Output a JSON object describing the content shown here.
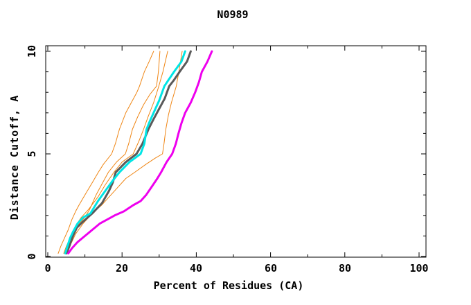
{
  "window": {
    "background": "#ffffff",
    "foreground": "#000000"
  },
  "chart_data": {
    "type": "line",
    "title": "N0989",
    "xlabel": "Percent of Residues (CA)",
    "ylabel": "Distance Cutoff, A",
    "xlim": [
      0,
      100
    ],
    "ylim": [
      0,
      10
    ],
    "grid": "off",
    "legend": "none",
    "x_major_ticks": [
      0,
      20,
      40,
      60,
      80,
      100
    ],
    "x_minor_step": 10,
    "y_major_ticks": [
      0,
      5,
      10
    ],
    "y_minor_step": 1,
    "x_tick_labels": [
      "0",
      "20",
      "40",
      "60",
      "80",
      "100"
    ],
    "y_tick_labels": [
      "0",
      "5",
      "10"
    ],
    "axis_color": "#000000",
    "series": [
      {
        "name": "orange-thin-1",
        "color": "#ef8513",
        "width": 1,
        "points": [
          [
            2.8,
            0.15
          ],
          [
            3.5,
            0.5
          ],
          [
            4.5,
            0.9
          ],
          [
            5.5,
            1.3
          ],
          [
            6.5,
            1.8
          ],
          [
            7.5,
            2.2
          ],
          [
            8.4,
            2.5
          ],
          [
            10,
            3
          ],
          [
            12,
            3.6
          ],
          [
            13.6,
            4.1
          ],
          [
            15,
            4.5
          ],
          [
            17.2,
            5
          ],
          [
            18.2,
            5.5
          ],
          [
            19.3,
            6.2
          ],
          [
            21,
            7
          ],
          [
            22.5,
            7.5
          ],
          [
            24,
            8
          ],
          [
            24.7,
            8.3
          ],
          [
            26,
            9
          ],
          [
            27.3,
            9.5
          ],
          [
            28.5,
            10
          ]
        ]
      },
      {
        "name": "orange-thin-2",
        "color": "#ef8513",
        "width": 1,
        "points": [
          [
            4.3,
            0.15
          ],
          [
            5,
            0.5
          ],
          [
            6,
            0.9
          ],
          [
            7,
            1.2
          ],
          [
            8,
            1.5
          ],
          [
            9.5,
            1.8
          ],
          [
            11,
            2.2
          ],
          [
            11.8,
            2.5
          ],
          [
            13,
            3
          ],
          [
            14.5,
            3.5
          ],
          [
            16.3,
            4.1
          ],
          [
            18.5,
            4.6
          ],
          [
            20.9,
            5
          ],
          [
            21.8,
            5.5
          ],
          [
            22.8,
            6.2
          ],
          [
            24.2,
            6.8
          ],
          [
            25.8,
            7.4
          ],
          [
            27.5,
            7.9
          ],
          [
            29.3,
            8.3
          ],
          [
            29.8,
            9
          ],
          [
            30.2,
            10
          ]
        ]
      },
      {
        "name": "orange-thin-3",
        "color": "#ef8513",
        "width": 1,
        "points": [
          [
            4.8,
            0.15
          ],
          [
            5.5,
            0.6
          ],
          [
            6.5,
            1.1
          ],
          [
            7.5,
            1.5
          ],
          [
            9,
            1.9
          ],
          [
            11,
            2.3
          ],
          [
            13.5,
            2.9
          ],
          [
            15.5,
            3.5
          ],
          [
            17.8,
            4.1
          ],
          [
            20,
            4.6
          ],
          [
            23,
            5
          ],
          [
            24.5,
            5.6
          ],
          [
            25.8,
            6.2
          ],
          [
            27,
            6.8
          ],
          [
            28.5,
            7.5
          ],
          [
            29.9,
            8.3
          ],
          [
            31,
            9
          ],
          [
            32.3,
            10
          ]
        ]
      },
      {
        "name": "orange-thin-4",
        "color": "#ef8513",
        "width": 1,
        "points": [
          [
            5.3,
            0.15
          ],
          [
            6.2,
            0.6
          ],
          [
            7.5,
            1.1
          ],
          [
            9.5,
            1.6
          ],
          [
            12,
            2.1
          ],
          [
            14.5,
            2.5
          ],
          [
            16.5,
            2.9
          ],
          [
            18.5,
            3.3
          ],
          [
            21,
            3.8
          ],
          [
            23.4,
            4.1
          ],
          [
            26.5,
            4.5
          ],
          [
            29,
            4.8
          ],
          [
            30.9,
            5
          ],
          [
            31.3,
            5.5
          ],
          [
            31.8,
            6.2
          ],
          [
            32.5,
            6.9
          ],
          [
            33.3,
            7.5
          ],
          [
            34.6,
            8.3
          ],
          [
            35.3,
            9
          ],
          [
            36.2,
            10
          ]
        ]
      },
      {
        "name": "gray-thick",
        "color": "#5a5a5a",
        "width": 3,
        "points": [
          [
            5,
            0.15
          ],
          [
            5.8,
            0.5
          ],
          [
            6.8,
            1
          ],
          [
            7.8,
            1.4
          ],
          [
            9.5,
            1.7
          ],
          [
            12,
            2.1
          ],
          [
            14.6,
            2.6
          ],
          [
            16.5,
            3.2
          ],
          [
            17.5,
            3.6
          ],
          [
            18.3,
            4.1
          ],
          [
            21,
            4.6
          ],
          [
            23.9,
            5
          ],
          [
            25.5,
            5.5
          ],
          [
            27.1,
            6.2
          ],
          [
            28.5,
            6.7
          ],
          [
            30,
            7.2
          ],
          [
            31.5,
            7.7
          ],
          [
            32.7,
            8.3
          ],
          [
            34,
            8.6
          ],
          [
            35.5,
            9
          ],
          [
            37.5,
            9.5
          ],
          [
            38.5,
            10
          ]
        ]
      },
      {
        "name": "cyan-thick",
        "color": "#00e5e5",
        "width": 3,
        "points": [
          [
            4.7,
            0.15
          ],
          [
            5.3,
            0.5
          ],
          [
            6,
            0.9
          ],
          [
            6.8,
            1.2
          ],
          [
            8,
            1.6
          ],
          [
            9.5,
            1.9
          ],
          [
            11.5,
            2.1
          ],
          [
            12.5,
            2.4
          ],
          [
            13.5,
            2.7
          ],
          [
            15.5,
            3.2
          ],
          [
            17.5,
            3.7
          ],
          [
            19.3,
            4.1
          ],
          [
            22,
            4.6
          ],
          [
            25,
            5
          ],
          [
            26,
            5.5
          ],
          [
            26.6,
            6.2
          ],
          [
            27.5,
            6.6
          ],
          [
            29,
            7.2
          ],
          [
            30,
            7.6
          ],
          [
            31.4,
            8.3
          ],
          [
            32.5,
            8.6
          ],
          [
            34,
            9
          ],
          [
            36,
            9.5
          ],
          [
            37,
            10
          ]
        ]
      },
      {
        "name": "magenta-thick",
        "color": "#ee00ee",
        "width": 3,
        "points": [
          [
            5.5,
            0.15
          ],
          [
            6.5,
            0.4
          ],
          [
            8,
            0.7
          ],
          [
            10,
            1
          ],
          [
            12,
            1.3
          ],
          [
            14,
            1.6
          ],
          [
            16,
            1.8
          ],
          [
            18,
            2
          ],
          [
            20.5,
            2.2
          ],
          [
            23,
            2.5
          ],
          [
            25,
            2.7
          ],
          [
            26.5,
            3
          ],
          [
            28,
            3.4
          ],
          [
            29.5,
            3.8
          ],
          [
            30.5,
            4.1
          ],
          [
            32,
            4.6
          ],
          [
            33.5,
            5
          ],
          [
            34.5,
            5.5
          ],
          [
            35.2,
            6
          ],
          [
            36,
            6.5
          ],
          [
            37,
            7
          ],
          [
            38.5,
            7.5
          ],
          [
            39.7,
            8
          ],
          [
            40.7,
            8.5
          ],
          [
            41.5,
            9
          ],
          [
            43,
            9.5
          ],
          [
            44.2,
            10
          ]
        ]
      }
    ]
  }
}
